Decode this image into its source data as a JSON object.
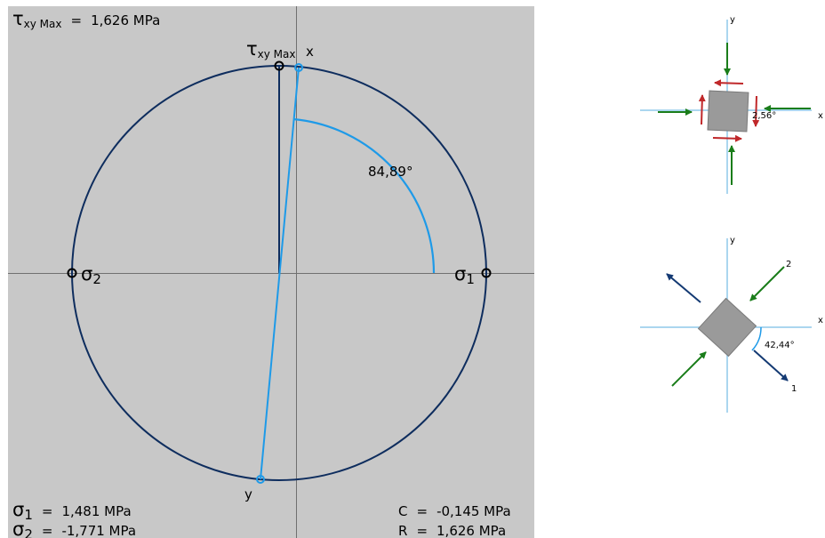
{
  "mohr_circle": {
    "sigma1": "1,481 MPa",
    "sigma2": "-1,771 MPa",
    "tau_max": "1,626 MPa",
    "center": "-0,145 MPa",
    "radius": "1,626 MPa",
    "angle_2theta": "84,89°",
    "labels": {
      "sigma": "σ",
      "tau": "τ",
      "sub1": "1",
      "sub2": "2",
      "sub_xy_max": "xy Max",
      "x": "x",
      "y": "y",
      "C": "C",
      "R": "R",
      "eq": "="
    },
    "colors": {
      "background": "#c8c8c8",
      "circle": "#0e2d5e",
      "diameter": "#1e9ae8",
      "axis": "#707070"
    }
  },
  "element_original": {
    "angle": "2,56°",
    "axis_x": "x",
    "axis_y": "y",
    "colors": {
      "normal_stress": "#1a7d1a",
      "shear_stress": "#c0282a",
      "element": "#9a9a9a"
    }
  },
  "element_principal": {
    "angle": "42,44°",
    "axis_x": "x",
    "axis_y": "y",
    "label_1": "1",
    "label_2": "2",
    "colors": {
      "tension": "#143a73",
      "compression": "#1a7d1a",
      "element": "#9a9a9a"
    }
  }
}
